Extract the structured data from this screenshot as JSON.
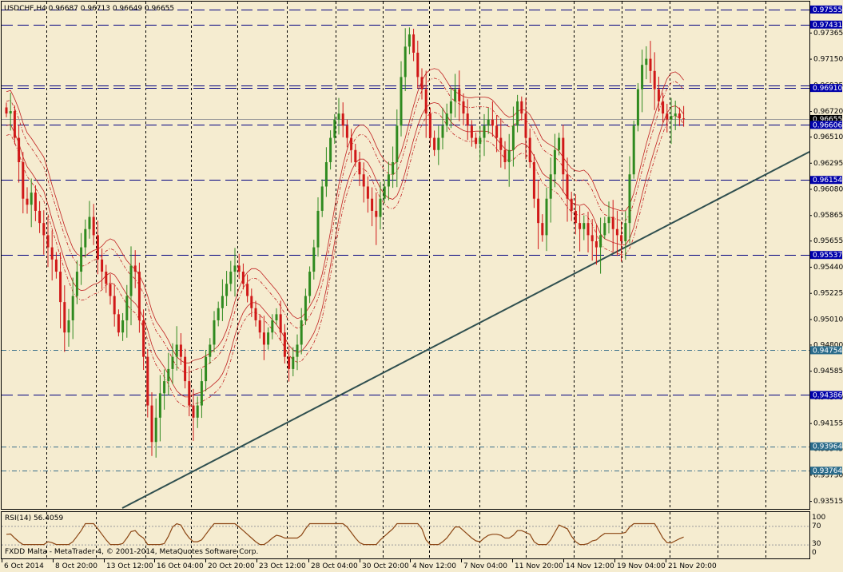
{
  "header": {
    "symbol_line": "USDCHF,H4  0.96687 0.96713 0.96649 0.96655"
  },
  "rsi": {
    "label": "RSI(14) 56.4059",
    "scale": [
      "100",
      "70",
      "30",
      "0"
    ]
  },
  "footer": {
    "copyright": "FXDD Malta - MetaTrader 4, © 2001-2014, MetaQuotes Software Corp."
  },
  "price_axis": {
    "ticks": [
      "0.97365",
      "0.97150",
      "0.96935",
      "0.96720",
      "0.96510",
      "0.96295",
      "0.96080",
      "0.95865",
      "0.95655",
      "0.95440",
      "0.95225",
      "0.95010",
      "0.94800",
      "0.94585",
      "0.94370",
      "0.94155",
      "0.93945",
      "0.93730",
      "0.93515"
    ],
    "level_labels": [
      {
        "text": "0.97555",
        "color": "#0000aa"
      },
      {
        "text": "0.97431",
        "color": "#0000aa"
      },
      {
        "text": "0.96910",
        "color": "#0000aa"
      },
      {
        "text": "0.96655",
        "color": "#ffffff"
      },
      {
        "text": "0.96606",
        "color": "#0000aa"
      },
      {
        "text": "0.96154",
        "color": "#0000aa"
      },
      {
        "text": "0.95537",
        "color": "#0000aa"
      },
      {
        "text": "0.94754",
        "color": "#2a6b8a"
      },
      {
        "text": "0.94386",
        "color": "#0000aa"
      },
      {
        "text": "0.93964",
        "color": "#2a6b8a"
      },
      {
        "text": "0.93764",
        "color": "#2a6b8a"
      }
    ]
  },
  "time_axis": {
    "labels": [
      "6 Oct 2014",
      "8 Oct 20:00",
      "13 Oct 12:00",
      "16 Oct 04:00",
      "20 Oct 20:00",
      "23 Oct 12:00",
      "28 Oct 04:00",
      "30 Oct 20:00",
      "4 Nov 12:00",
      "7 Nov 04:00",
      "11 Nov 20:00",
      "14 Nov 12:00",
      "19 Nov 04:00",
      "21 Nov 20:00"
    ]
  },
  "colors": {
    "background": "#f5ecd0",
    "bull": "#2f8a1f",
    "bear": "#d01818",
    "trendline": "#2f4f4f",
    "level": "#000080",
    "envelope": "#c02020",
    "rsi": "#8b4513",
    "price_marker": "#000000"
  },
  "chart_data": {
    "type": "candlestick",
    "title": "USDCHF,H4  0.96687 0.96713 0.96649 0.96655",
    "ylim": [
      0.9345,
      0.9762
    ],
    "horizontal_levels": [
      0.97555,
      0.97431,
      0.9691,
      0.96606,
      0.96154,
      0.95537,
      0.94754,
      0.94386,
      0.93964,
      0.93764
    ],
    "current_price": 0.96655,
    "trendline": [
      [
        0,
        0.9352
      ],
      [
        183,
        0.9632
      ]
    ],
    "close_path": [
      0.967,
      0.9672,
      0.965,
      0.963,
      0.96,
      0.9595,
      0.9605,
      0.959,
      0.958,
      0.957,
      0.956,
      0.955,
      0.954,
      0.9515,
      0.949,
      0.95,
      0.952,
      0.954,
      0.956,
      0.9575,
      0.9585,
      0.957,
      0.955,
      0.954,
      0.953,
      0.952,
      0.9505,
      0.949,
      0.95,
      0.952,
      0.9545,
      0.954,
      0.95,
      0.947,
      0.943,
      0.94,
      0.942,
      0.944,
      0.945,
      0.946,
      0.947,
      0.948,
      0.947,
      0.945,
      0.943,
      0.942,
      0.943,
      0.945,
      0.947,
      0.948,
      0.95,
      0.951,
      0.952,
      0.953,
      0.954,
      0.9545,
      0.954,
      0.953,
      0.952,
      0.951,
      0.95,
      0.949,
      0.948,
      0.949,
      0.95,
      0.9505,
      0.949,
      0.947,
      0.946,
      0.947,
      0.948,
      0.95,
      0.952,
      0.954,
      0.956,
      0.959,
      0.961,
      0.963,
      0.965,
      0.9665,
      0.967,
      0.966,
      0.965,
      0.964,
      0.963,
      0.962,
      0.961,
      0.96,
      0.959,
      0.9585,
      0.96,
      0.961,
      0.962,
      0.963,
      0.966,
      0.97,
      0.9725,
      0.9735,
      0.972,
      0.97,
      0.969,
      0.967,
      0.965,
      0.964,
      0.965,
      0.966,
      0.967,
      0.968,
      0.969,
      0.968,
      0.967,
      0.966,
      0.965,
      0.9645,
      0.965,
      0.966,
      0.9665,
      0.966,
      0.965,
      0.964,
      0.963,
      0.964,
      0.966,
      0.968,
      0.967,
      0.965,
      0.963,
      0.96,
      0.958,
      0.957,
      0.96,
      0.962,
      0.964,
      0.965,
      0.962,
      0.96,
      0.959,
      0.958,
      0.9575,
      0.958,
      0.957,
      0.9565,
      0.956,
      0.957,
      0.958,
      0.9585,
      0.9575,
      0.957,
      0.9565,
      0.958,
      0.962,
      0.966,
      0.969,
      0.971,
      0.9715,
      0.9705,
      0.969,
      0.968,
      0.967,
      0.9665,
      0.9668,
      0.967,
      0.9666,
      0.96655
    ],
    "rsi_value": 56.4059,
    "rsi_levels": [
      30,
      70
    ]
  }
}
